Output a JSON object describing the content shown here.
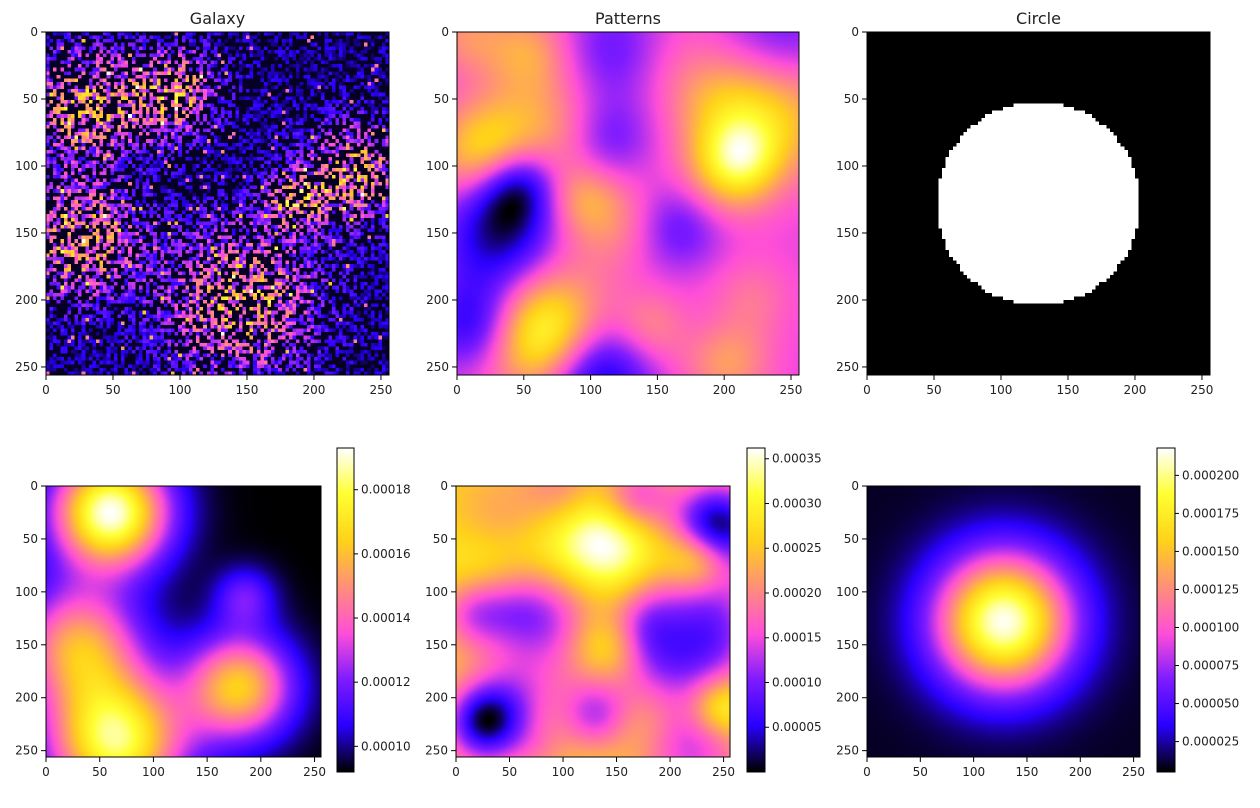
{
  "colormap": [
    "#000000",
    "#2a00ff",
    "#7f1cff",
    "#ff4fd8",
    "#ff8f7a",
    "#ffd21a",
    "#ffff30",
    "#ffffff"
  ],
  "chart_data": [
    {
      "type": "heatmap",
      "title": "Galaxy",
      "xlim": [
        0,
        256
      ],
      "ylim": [
        256,
        0
      ],
      "xticks": [
        0,
        50,
        100,
        150,
        200,
        250
      ],
      "yticks": [
        0,
        50,
        100,
        150,
        200,
        250
      ],
      "pattern": "noise-blobs",
      "blobs": [
        [
          30,
          55,
          28
        ],
        [
          95,
          45,
          22
        ],
        [
          25,
          155,
          30
        ],
        [
          145,
          200,
          38
        ],
        [
          185,
          125,
          14
        ],
        [
          230,
          105,
          25
        ]
      ],
      "colorbar": null
    },
    {
      "type": "heatmap",
      "title": "Patterns",
      "xlim": [
        0,
        256
      ],
      "ylim": [
        256,
        0
      ],
      "xticks": [
        0,
        50,
        100,
        150,
        200,
        250
      ],
      "yticks": [
        0,
        50,
        100,
        150,
        200,
        250
      ],
      "pattern": "smooth-field",
      "seed": 7,
      "colorbar": null
    },
    {
      "type": "heatmap",
      "title": "Circle",
      "xlim": [
        0,
        256
      ],
      "ylim": [
        256,
        0
      ],
      "xticks": [
        0,
        50,
        100,
        150,
        200,
        250
      ],
      "yticks": [
        0,
        50,
        100,
        150,
        200,
        250
      ],
      "pattern": "disk",
      "disk": {
        "cx": 128,
        "cy": 128,
        "r": 76
      },
      "colorbar": null
    },
    {
      "type": "heatmap",
      "title": "",
      "xlim": [
        0,
        256
      ],
      "ylim": [
        256,
        0
      ],
      "xticks": [
        0,
        50,
        100,
        150,
        200,
        250
      ],
      "yticks": [
        0,
        50,
        100,
        150,
        200,
        250
      ],
      "pattern": "gaussian-sum",
      "blobs": [
        [
          60,
          25,
          38,
          1.0
        ],
        [
          65,
          240,
          45,
          0.9
        ],
        [
          30,
          150,
          40,
          0.6
        ],
        [
          180,
          190,
          35,
          0.7
        ],
        [
          185,
          105,
          20,
          0.25
        ]
      ],
      "colorbar": {
        "min": 9.2e-05,
        "max": 0.000193,
        "ticks": [
          0.0001,
          0.00012,
          0.00014,
          0.00016,
          0.00018
        ]
      }
    },
    {
      "type": "heatmap",
      "title": "",
      "xlim": [
        0,
        256
      ],
      "ylim": [
        256,
        0
      ],
      "xticks": [
        0,
        50,
        100,
        150,
        200,
        250
      ],
      "yticks": [
        0,
        50,
        100,
        150,
        200,
        250
      ],
      "pattern": "smooth-field-soft",
      "seed": 13,
      "colorbar": {
        "min": 0.0,
        "max": 0.000362,
        "ticks": [
          5e-05,
          0.0001,
          0.00015,
          0.0002,
          0.00025,
          0.0003,
          0.00035
        ]
      }
    },
    {
      "type": "heatmap",
      "title": "",
      "xlim": [
        0,
        256
      ],
      "ylim": [
        256,
        0
      ],
      "xticks": [
        0,
        50,
        100,
        150,
        200,
        250
      ],
      "yticks": [
        0,
        50,
        100,
        150,
        200,
        250
      ],
      "pattern": "radial",
      "disk": {
        "cx": 128,
        "cy": 128,
        "r": 95
      },
      "colorbar": {
        "min": 5e-06,
        "max": 0.000218,
        "ticks": [
          2.5e-05,
          5e-05,
          7.5e-05,
          0.0001,
          0.000125,
          0.00015,
          0.000175,
          0.0002
        ]
      }
    }
  ],
  "tick_text": {
    "x": [
      "0",
      "50",
      "100",
      "150",
      "200",
      "250"
    ],
    "y": [
      "0",
      "50",
      "100",
      "150",
      "200",
      "250"
    ],
    "cb": [
      [],
      [],
      [],
      [
        "0.00010",
        "0.00012",
        "0.00014",
        "0.00016",
        "0.00018"
      ],
      [
        "0.00005",
        "0.00010",
        "0.00015",
        "0.00020",
        "0.00025",
        "0.00030",
        "0.00035"
      ],
      [
        "0.000025",
        "0.000050",
        "0.000075",
        "0.000100",
        "0.000125",
        "0.000150",
        "0.000175",
        "0.000200"
      ]
    ]
  }
}
